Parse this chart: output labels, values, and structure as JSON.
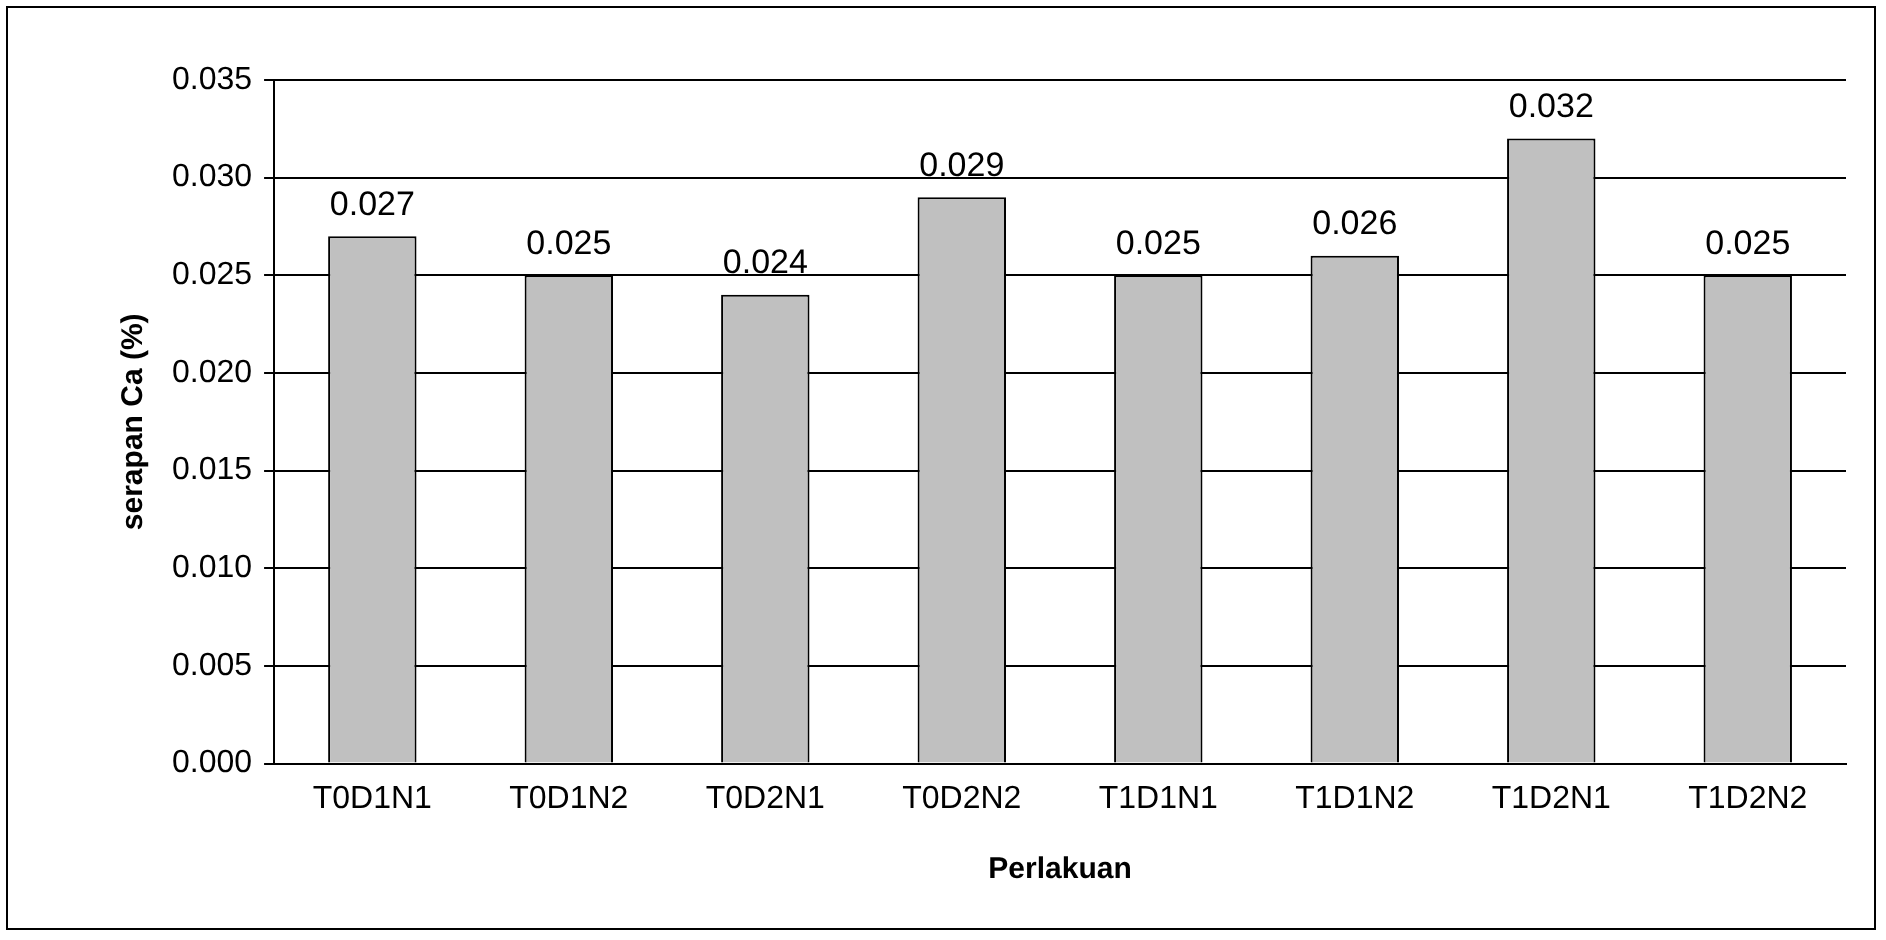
{
  "chart_data": {
    "type": "bar",
    "xlabel": "Perlakuan",
    "ylabel": "serapan Ca (%)",
    "categories": [
      "T0D1N1",
      "T0D1N2",
      "T0D2N1",
      "T0D2N2",
      "T1D1N1",
      "T1D1N2",
      "T1D2N1",
      "T1D2N2"
    ],
    "values": [
      0.027,
      0.025,
      0.024,
      0.029,
      0.025,
      0.026,
      0.032,
      0.025
    ],
    "color": "#c0c0c0",
    "ylim": [
      0,
      0.035
    ],
    "yticks": [
      {
        "value": 0,
        "label": "0.000"
      },
      {
        "value": 0.005,
        "label": "0.005"
      },
      {
        "value": 0.01,
        "label": "0.010"
      },
      {
        "value": 0.015,
        "label": "0.015"
      },
      {
        "value": 0.02,
        "label": "0.020"
      },
      {
        "value": 0.025,
        "label": "0.025"
      },
      {
        "value": 0.03,
        "label": "0.030"
      },
      {
        "value": 0.035,
        "label": "0.035"
      }
    ],
    "grid": "y",
    "data_labels": true,
    "legend": false
  }
}
